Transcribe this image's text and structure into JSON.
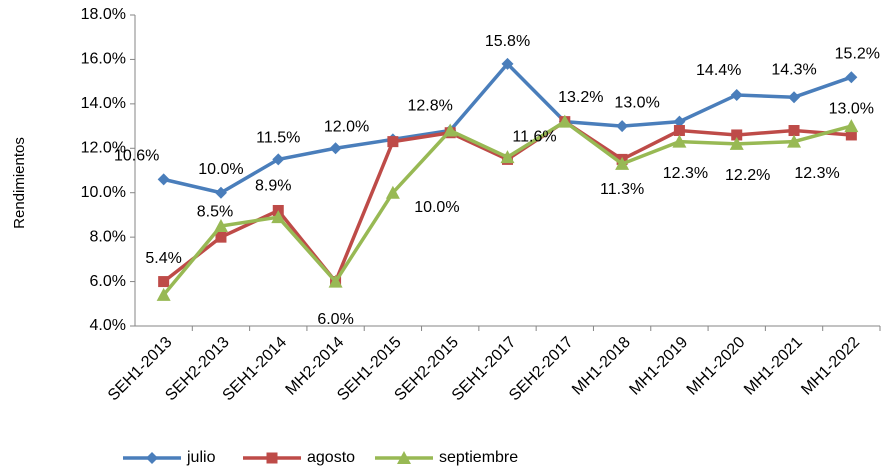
{
  "chart_data": {
    "type": "line",
    "y_label": "Rendimientos",
    "categories": [
      "SEH1-2013",
      "SEH2-2013",
      "SEH1-2014",
      "MH2-2014",
      "SEH1-2015",
      "SEH2-2015",
      "SEH1-2017",
      "SEH2-2017",
      "MH1-2018",
      "MH1-2019",
      "MH1-2020",
      "MH1-2021",
      "MH1-2022"
    ],
    "series": [
      {
        "name": "julio",
        "color": "#4a7ebb",
        "marker": "diamond",
        "values": [
          10.6,
          10.0,
          11.5,
          12.0,
          12.4,
          12.8,
          15.8,
          13.2,
          13.0,
          13.2,
          14.4,
          14.3,
          15.2
        ],
        "value_labels": [
          "10.6%",
          "10.0%",
          "11.5%",
          "12.0%",
          null,
          "12.8%",
          "15.8%",
          "13.2%",
          "13.0%",
          null,
          "14.4%",
          "14.3%",
          "15.2%"
        ]
      },
      {
        "name": "agosto",
        "color": "#be4b48",
        "marker": "square",
        "values": [
          6.0,
          8.0,
          9.2,
          6.0,
          12.3,
          12.7,
          11.5,
          13.2,
          11.5,
          12.8,
          12.6,
          12.8,
          12.6
        ]
      },
      {
        "name": "septiembre",
        "color": "#98b954",
        "marker": "triangle",
        "values": [
          5.4,
          8.5,
          8.9,
          6.0,
          10.0,
          12.8,
          11.6,
          13.2,
          11.3,
          12.3,
          12.2,
          12.3,
          13.0
        ],
        "value_labels": [
          "5.4%",
          "8.5%",
          "8.9%",
          "6.0%",
          "10.0%",
          null,
          "11.6%",
          null,
          "11.3%",
          "12.3%",
          "12.2%",
          "12.3%",
          "13.0%"
        ]
      }
    ],
    "ylim": [
      4.0,
      18.0
    ],
    "yticks": [
      {
        "value": 4.0,
        "label": "4.0%"
      },
      {
        "value": 6.0,
        "label": "6.0%"
      },
      {
        "value": 8.0,
        "label": "8.0%"
      },
      {
        "value": 10.0,
        "label": "10.0%"
      },
      {
        "value": 12.0,
        "label": "12.0%"
      },
      {
        "value": 14.0,
        "label": "14.0%"
      },
      {
        "value": 16.0,
        "label": "16.0%"
      },
      {
        "value": 18.0,
        "label": "18.0%"
      }
    ],
    "grid": false,
    "legend": "bottom"
  }
}
